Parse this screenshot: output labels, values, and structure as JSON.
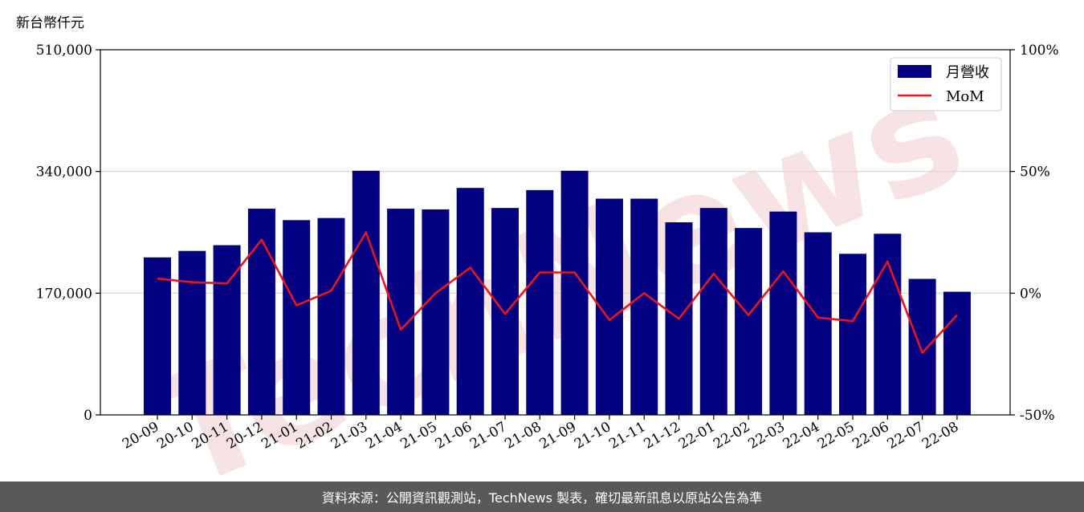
{
  "chart_data": {
    "type": "bar",
    "unit_label": "新台幣仟元",
    "categories": [
      "20-09",
      "20-10",
      "20-11",
      "20-12",
      "21-01",
      "21-02",
      "21-03",
      "21-04",
      "21-05",
      "21-06",
      "21-07",
      "21-08",
      "21-09",
      "21-10",
      "21-11",
      "21-12",
      "22-01",
      "22-02",
      "22-03",
      "22-04",
      "22-05",
      "22-06",
      "22-07",
      "22-08"
    ],
    "series": [
      {
        "name": "月營收",
        "axis": "left",
        "type": "bar",
        "color": "#000080",
        "values": [
          220000,
          229000,
          237000,
          288000,
          272000,
          275000,
          341000,
          288000,
          287000,
          317000,
          289000,
          314000,
          341000,
          302000,
          302000,
          269000,
          289000,
          261000,
          284000,
          255000,
          225000,
          253000,
          190000,
          172000
        ]
      },
      {
        "name": "MoM",
        "axis": "right",
        "type": "line",
        "color": "#e8141e",
        "values": [
          6,
          4.5,
          4,
          22,
          -5,
          1,
          25,
          -15,
          0,
          10.5,
          -8.5,
          8.5,
          8.5,
          -11,
          0,
          -10.5,
          8,
          -9,
          9,
          -10,
          -11.5,
          13,
          -24.5,
          -9
        ]
      }
    ],
    "y_left": {
      "min": 0,
      "max": 510000,
      "ticks": [
        "0",
        "170,000",
        "340,000",
        "510,000"
      ],
      "tick_values": [
        0,
        170000,
        340000,
        510000
      ]
    },
    "y_right": {
      "min": -50,
      "max": 100,
      "ticks": [
        "-50%",
        "0%",
        "50%",
        "100%"
      ],
      "tick_values": [
        -50,
        0,
        50,
        100
      ]
    },
    "grid": "horizontal",
    "legend_position": "top-right"
  },
  "watermark": {
    "text": "TechNews",
    "color": "#f2d0d0"
  },
  "footer": {
    "text": "資料來源：公開資訊觀測站，TechNews 製表，確切最新訊息以原站公告為準"
  }
}
